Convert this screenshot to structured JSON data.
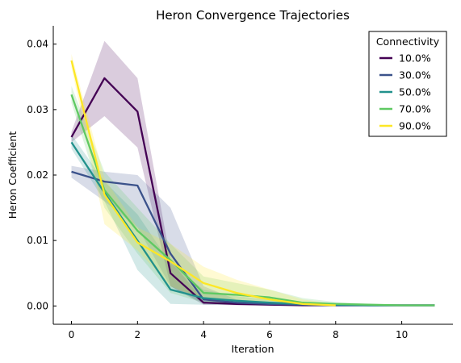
{
  "chart_data": {
    "type": "line",
    "title": "Heron Convergence Trajectories",
    "xlabel": "Iteration",
    "ylabel": "Heron Coefficient",
    "xlim": [
      -0.55,
      11.55
    ],
    "ylim": [
      -0.0028,
      0.0428
    ],
    "xticks": [
      0,
      2,
      4,
      6,
      8,
      10
    ],
    "xtick_labels": [
      "0",
      "2",
      "4",
      "6",
      "8",
      "10"
    ],
    "yticks": [
      0.0,
      0.01,
      0.02,
      0.03,
      0.04
    ],
    "ytick_labels": [
      "0.00",
      "0.01",
      "0.02",
      "0.03",
      "0.04"
    ],
    "grid": false,
    "legend": {
      "title": "Connectivity",
      "placement": "top-right"
    },
    "series": [
      {
        "name": "10.0%",
        "color": "#440154",
        "x": [
          0,
          1,
          2,
          3,
          4,
          5,
          6,
          7,
          8,
          9,
          10,
          11
        ],
        "values": [
          0.0258,
          0.0348,
          0.0297,
          0.005,
          0.0005,
          0.0003,
          0.0002,
          0.0001,
          0.0001,
          0.0001,
          0.0001,
          0.0001
        ],
        "lower": [
          0.025,
          0.029,
          0.0242,
          0.003,
          0.0002,
          0.0001,
          0.0001,
          0.0001,
          0.0001,
          0.0001,
          0.0001,
          0.0001
        ],
        "upper": [
          0.0266,
          0.0405,
          0.0348,
          0.007,
          0.0008,
          0.0005,
          0.0003,
          0.0001,
          0.0001,
          0.0001,
          0.0001,
          0.0001
        ]
      },
      {
        "name": "30.0%",
        "color": "#3b528b",
        "x": [
          0,
          1,
          2,
          3,
          4,
          5,
          6,
          7,
          8,
          9,
          10,
          11
        ],
        "values": [
          0.0205,
          0.019,
          0.0184,
          0.008,
          0.001,
          0.0005,
          0.0003,
          0.0002,
          0.0001,
          0.0001,
          0.0001,
          0.0001
        ],
        "lower": [
          0.0196,
          0.016,
          0.012,
          0.003,
          0.0004,
          0.0002,
          0.0001,
          0.0001,
          0.0001,
          0.0001,
          0.0001,
          0.0001
        ],
        "upper": [
          0.0214,
          0.0205,
          0.02,
          0.015,
          0.003,
          0.001,
          0.0006,
          0.0003,
          0.0001,
          0.0001,
          0.0001,
          0.0001
        ]
      },
      {
        "name": "50.0%",
        "color": "#21918c",
        "x": [
          0,
          1,
          2,
          3,
          4,
          5,
          6,
          7,
          8,
          9,
          10,
          11
        ],
        "values": [
          0.025,
          0.0173,
          0.01,
          0.0025,
          0.0012,
          0.0008,
          0.0005,
          0.0003,
          0.0002,
          0.0001,
          0.0001,
          0.0001
        ],
        "lower": [
          0.024,
          0.016,
          0.0055,
          0.0003,
          0.0002,
          0.0002,
          0.0002,
          0.0001,
          0.0001,
          0.0001,
          0.0001,
          0.0001
        ],
        "upper": [
          0.0262,
          0.019,
          0.014,
          0.0065,
          0.0025,
          0.0015,
          0.001,
          0.0005,
          0.0003,
          0.0001,
          0.0001,
          0.0001
        ]
      },
      {
        "name": "70.0%",
        "color": "#5ec962",
        "x": [
          0,
          1,
          2,
          3,
          4,
          5,
          6,
          7,
          8,
          9,
          10,
          11
        ],
        "values": [
          0.0323,
          0.0177,
          0.0115,
          0.007,
          0.002,
          0.0017,
          0.0013,
          0.0005,
          0.0003,
          0.0002,
          0.0001,
          0.0001
        ],
        "lower": [
          0.031,
          0.015,
          0.008,
          0.002,
          0.0005,
          0.0004,
          0.0003,
          0.0002,
          0.0001,
          0.0001,
          0.0001,
          0.0001
        ],
        "upper": [
          0.0336,
          0.0205,
          0.015,
          0.0095,
          0.0045,
          0.0035,
          0.0025,
          0.0012,
          0.0006,
          0.0003,
          0.0001,
          0.0001
        ]
      },
      {
        "name": "90.0%",
        "color": "#fde725",
        "x": [
          0,
          1,
          2,
          3,
          4,
          5,
          6,
          7,
          8
        ],
        "values": [
          0.0375,
          0.017,
          0.0097,
          0.0068,
          0.0035,
          0.002,
          0.001,
          0.0003,
          0.0001
        ],
        "lower": [
          0.0365,
          0.0125,
          0.0085,
          0.003,
          0.001,
          0.0005,
          0.0003,
          0.0001,
          0.0
        ],
        "upper": [
          0.0385,
          0.0195,
          0.012,
          0.0095,
          0.006,
          0.004,
          0.0025,
          0.001,
          0.0003
        ]
      }
    ]
  }
}
